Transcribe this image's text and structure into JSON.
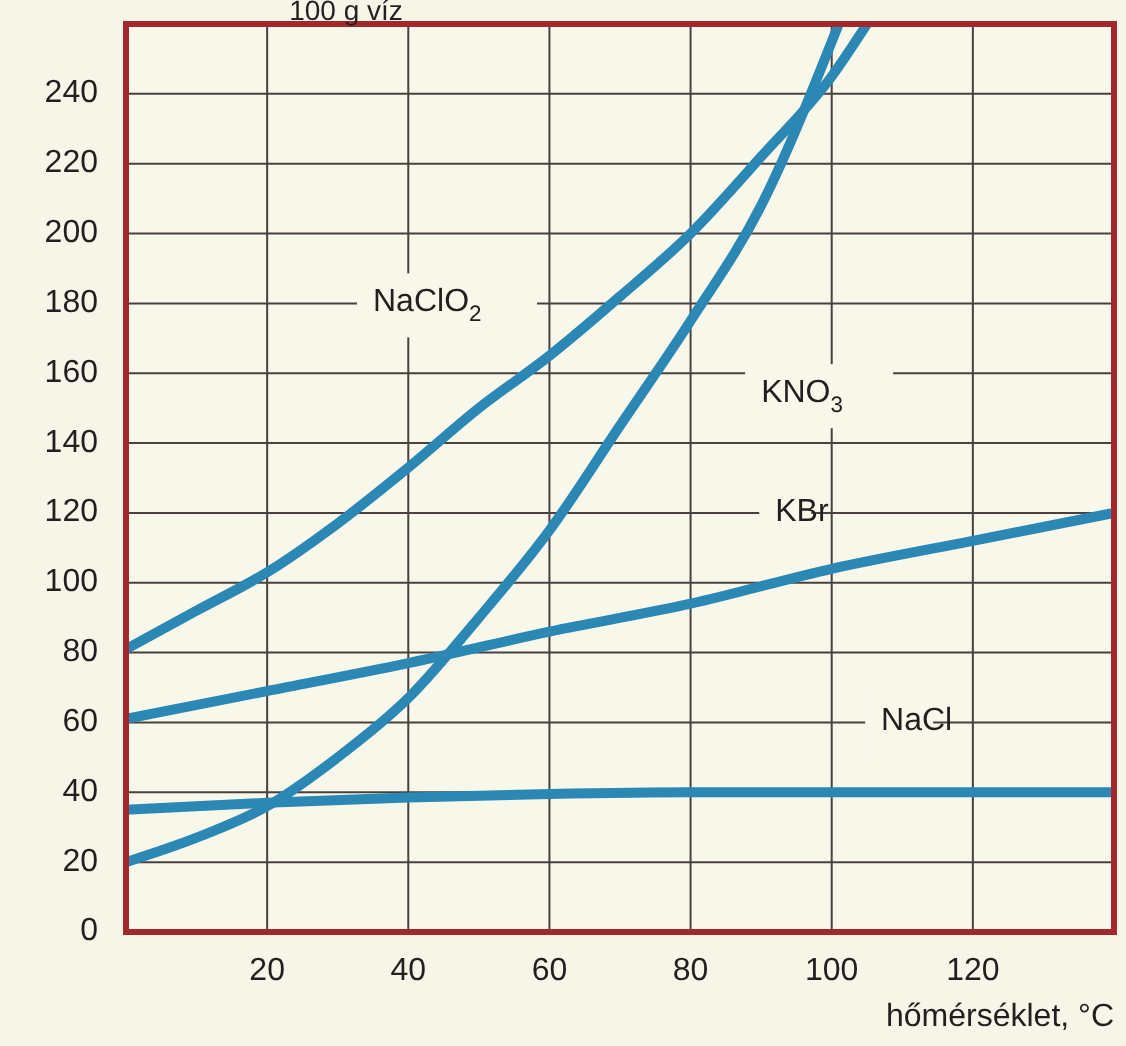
{
  "chart_data": {
    "type": "line",
    "ylabel": "100 g víz",
    "xlabel": "hőmérséklet, °C",
    "xlim": [
      0,
      140
    ],
    "ylim": [
      0,
      260
    ],
    "xticks": [
      20,
      40,
      60,
      80,
      100,
      120
    ],
    "yticks": [
      0,
      20,
      40,
      60,
      80,
      100,
      120,
      140,
      160,
      180,
      200,
      220,
      240
    ],
    "grid": true,
    "marker": "none",
    "line_style": "solid",
    "series": [
      {
        "name": "NaClO$_{2}$",
        "color": "#2b87b3",
        "x": [
          0,
          10,
          20,
          30,
          40,
          50,
          60,
          70,
          80,
          90,
          100,
          105
        ],
        "values": [
          81,
          92,
          103,
          117,
          133,
          150,
          165,
          182,
          200,
          222,
          245,
          260
        ]
      },
      {
        "name": "KNO$_{3}$",
        "color": "#2b87b3",
        "x": [
          0,
          10,
          20,
          30,
          40,
          50,
          60,
          70,
          80,
          90,
          101
        ],
        "values": [
          20,
          27,
          36,
          50,
          67,
          90,
          115,
          145,
          175,
          208,
          260
        ]
      },
      {
        "name": "KBr",
        "color": "#2b87b3",
        "x": [
          0,
          20,
          40,
          60,
          80,
          100,
          120,
          140
        ],
        "values": [
          61,
          69,
          77,
          86,
          94,
          104,
          112,
          120
        ]
      },
      {
        "name": "NaCl",
        "color": "#2b87b3",
        "x": [
          0,
          20,
          40,
          60,
          80,
          100,
          120,
          140
        ],
        "values": [
          35,
          37,
          38.5,
          39.5,
          40,
          40,
          40,
          40
        ]
      }
    ]
  }
}
